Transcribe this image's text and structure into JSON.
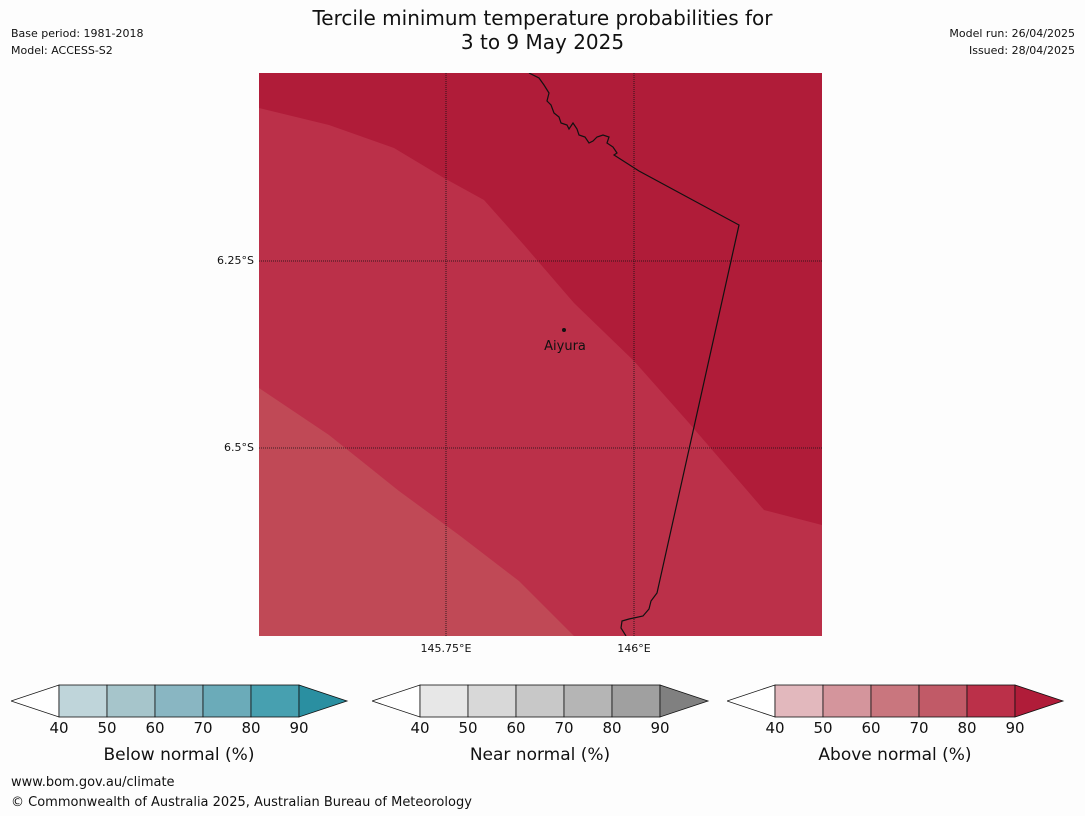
{
  "header": {
    "title_line1": "Tercile minimum temperature probabilities for",
    "title_line2": "3 to 9 May 2025",
    "base_period": "Base period: 1981-2018",
    "model": "Model: ACCESS-S2",
    "model_run": "Model run: 26/04/2025",
    "issued": "Issued: 28/04/2025"
  },
  "map": {
    "lat_labels": [
      "6.25°S",
      "6.5°S"
    ],
    "lon_labels": [
      "145.75°E",
      "146°E"
    ],
    "place": "Aiyura",
    "colors": {
      "above_80_90": "#b01c39",
      "above_70_80": "#bb3049",
      "above_60_70": "#c04956",
      "border": "#111111"
    }
  },
  "legend": {
    "ticks": [
      "40",
      "50",
      "60",
      "70",
      "80",
      "90"
    ],
    "bars": [
      {
        "label": "Below normal (%)",
        "colors": [
          "#ffffff",
          "#bfd5da",
          "#a6c5cb",
          "#89b6c2",
          "#6babb9",
          "#47a0b0",
          "#2a8fa1"
        ]
      },
      {
        "label": "Near normal (%)",
        "colors": [
          "#ffffff",
          "#e7e7e7",
          "#d8d8d8",
          "#c8c8c8",
          "#b5b5b5",
          "#a0a0a0",
          "#808080"
        ]
      },
      {
        "label": "Above normal (%)",
        "colors": [
          "#ffffff",
          "#e2b8bd",
          "#d4959c",
          "#c9767e",
          "#c15a67",
          "#bb3049",
          "#b01c39"
        ]
      }
    ]
  },
  "footer": {
    "url": "www.bom.gov.au/climate",
    "copyright": "© Commonwealth of Australia 2025, Australian Bureau of Meteorology"
  }
}
